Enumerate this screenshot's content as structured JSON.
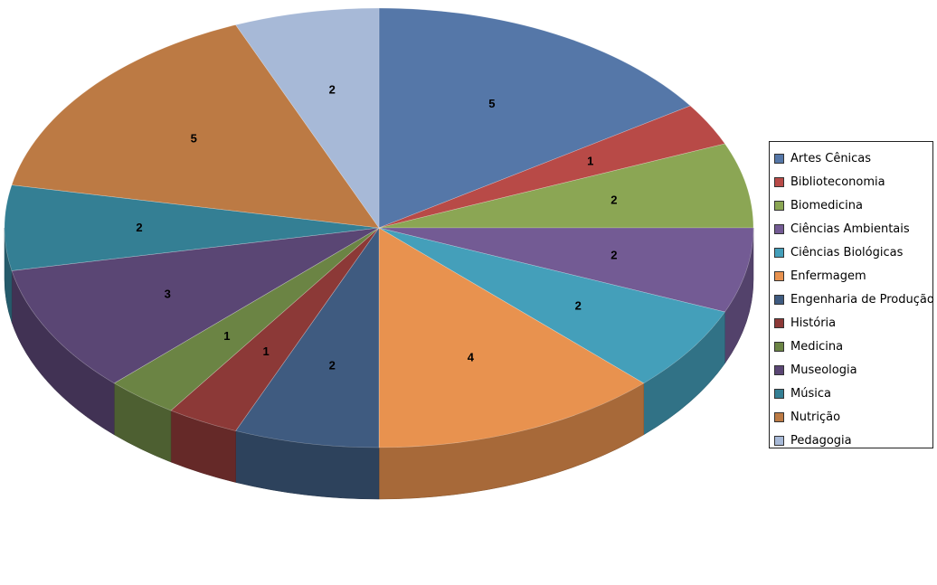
{
  "chart_data": {
    "type": "pie",
    "style": "3d",
    "title": "",
    "legend_position": "right",
    "categories": [
      "Artes Cênicas",
      "Biblioteconomia",
      "Biomedicina",
      "Ciências Ambientais",
      "Ciências Biológicas",
      "Enfermagem",
      "Engenharia de Produção",
      "História",
      "Medicina",
      "Museologia",
      "Música",
      "Nutrição",
      "Pedagogia"
    ],
    "values": [
      5,
      1,
      2,
      2,
      2,
      4,
      2,
      1,
      1,
      3,
      2,
      5,
      2
    ],
    "colors": [
      "#5577a8",
      "#b84a47",
      "#8ba654",
      "#735b94",
      "#449fba",
      "#e8924f",
      "#3f5b80",
      "#8c3937",
      "#6b8444",
      "#5a4674",
      "#347f94",
      "#bc7a44",
      "#a7b9d7"
    ]
  }
}
